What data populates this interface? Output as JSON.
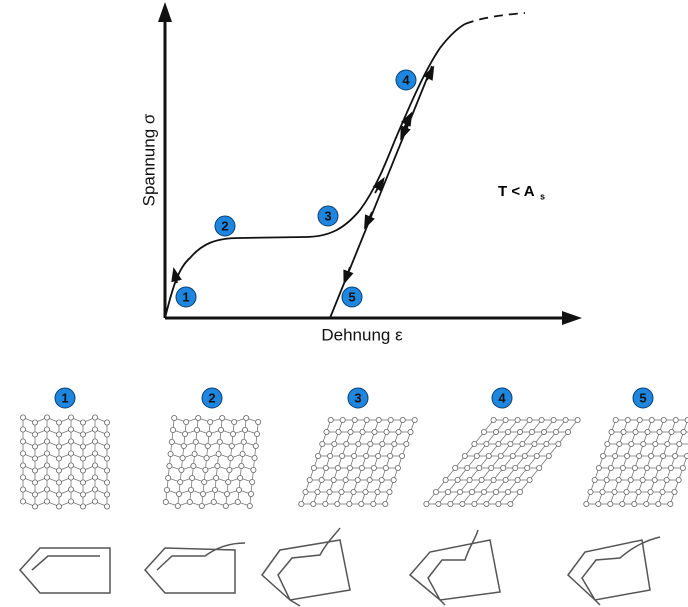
{
  "axes": {
    "y_label": "Spannung σ",
    "x_label": "Dehnung ε"
  },
  "condition": {
    "text": "T < A",
    "subscript": "s"
  },
  "curve_markers": [
    "1",
    "2",
    "3",
    "4",
    "5"
  ],
  "stage_markers": [
    "1",
    "2",
    "3",
    "4",
    "5"
  ]
}
